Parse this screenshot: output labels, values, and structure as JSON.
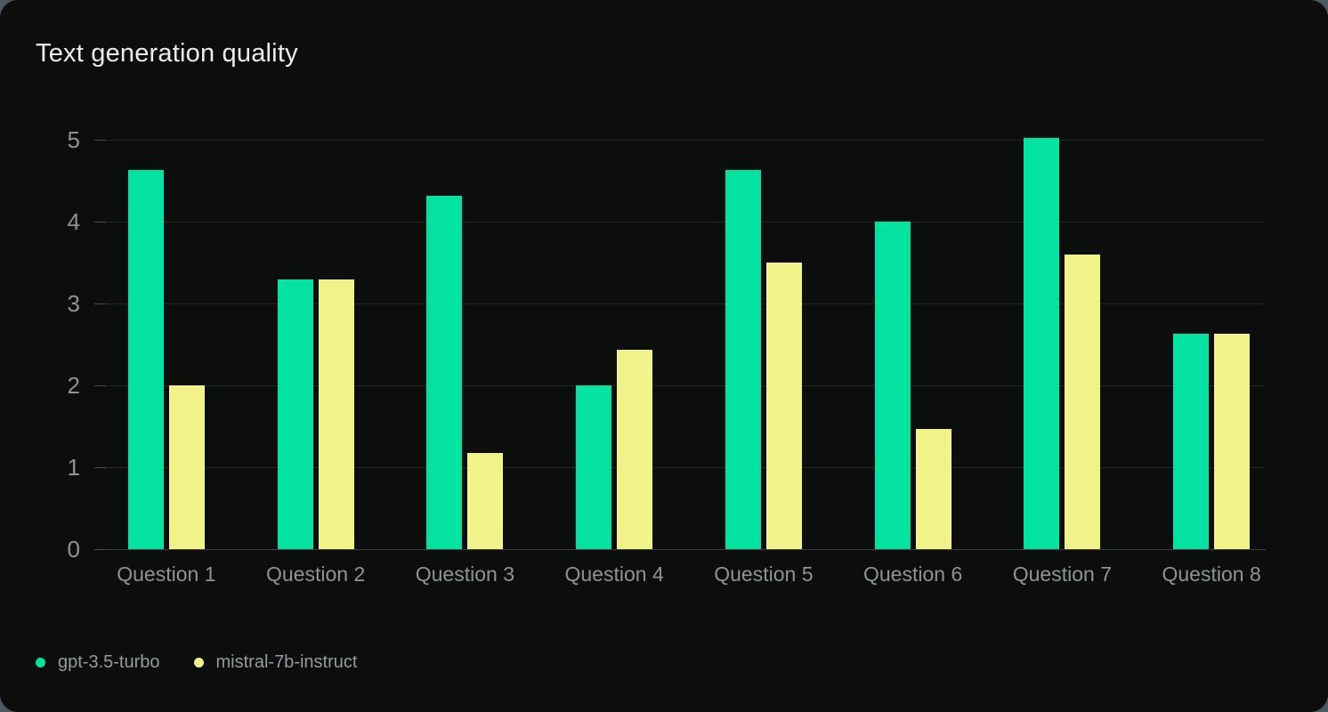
{
  "chart_data": {
    "type": "bar",
    "title": "Text generation quality",
    "categories": [
      "Question 1",
      "Question 2",
      "Question 3",
      "Question 4",
      "Question 5",
      "Question 6",
      "Question 7",
      "Question 8"
    ],
    "series": [
      {
        "name": "gpt-3.5-turbo",
        "color": "#03e2a0",
        "values": [
          4.63,
          3.29,
          4.32,
          2.0,
          4.63,
          4.0,
          5.02,
          2.63
        ]
      },
      {
        "name": "mistral-7b-instruct",
        "color": "#f1f388",
        "values": [
          2.0,
          3.29,
          1.17,
          2.43,
          3.5,
          1.47,
          3.6,
          2.63
        ]
      }
    ],
    "xlabel": "",
    "ylabel": "",
    "ylim": [
      0,
      5
    ],
    "yticks": [
      0,
      1,
      2,
      3,
      4,
      5
    ],
    "grid": "horizontal",
    "legend_position": "bottom-left",
    "theme": {
      "card_background": "#0c0e0d",
      "page_background": "#4d5960",
      "grid_color": "#252726",
      "baseline_color": "#3c3f3e",
      "axis_text_color": "#8f9297",
      "title_color": "#ebecec",
      "legend_text_color": "#979ba1"
    }
  }
}
